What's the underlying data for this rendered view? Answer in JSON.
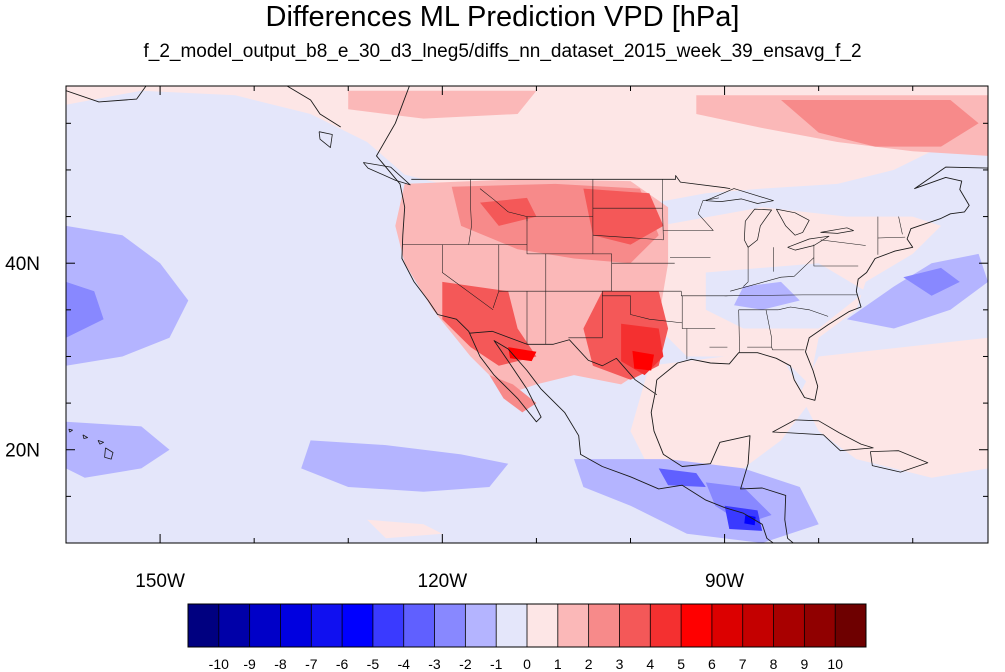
{
  "title": "Differences ML Prediction VPD [hPa]",
  "subtitle": "f_2_model_output_b8_e_30_d3_lneg5/diffs_nn_dataset_2015_week_39_ensavg_f_2",
  "map": {
    "lon_range": [
      -160,
      -62
    ],
    "lat_range": [
      10,
      59
    ],
    "x_ticks": [
      {
        "value": -150,
        "label": "150W"
      },
      {
        "value": -120,
        "label": "120W"
      },
      {
        "value": -90,
        "label": "90W"
      }
    ],
    "y_ticks": [
      {
        "value": 40,
        "label": "40N"
      },
      {
        "value": 20,
        "label": "20N"
      }
    ],
    "background_value": -0.5
  },
  "colorbar": {
    "labels": [
      "-10",
      "-9",
      "-8",
      "-7",
      "-6",
      "-5",
      "-4",
      "-3",
      "-2",
      "-1",
      "0",
      "1",
      "2",
      "3",
      "4",
      "5",
      "6",
      "7",
      "8",
      "9",
      "10"
    ],
    "colors": [
      "#000080",
      "#0000a8",
      "#0000c8",
      "#0000e0",
      "#1010f0",
      "#0000ff",
      "#3a3aff",
      "#6060ff",
      "#8888ff",
      "#b4b4ff",
      "#e4e6fa",
      "#fde6e6",
      "#fbb8b8",
      "#f78a8a",
      "#f45858",
      "#f43030",
      "#ff0000",
      "#dc0000",
      "#c40000",
      "#a80000",
      "#900000",
      "#6e0000"
    ]
  },
  "chart_data": {
    "type": "heatmap",
    "title": "Differences ML Prediction VPD [hPa]",
    "subtitle": "f_2_model_output_b8_e_30_d3_lneg5/diffs_nn_dataset_2015_week_39_ensavg_f_2",
    "xlim": [
      -160,
      -62
    ],
    "ylim": [
      10,
      59
    ],
    "x_tick_labels": [
      "150W",
      "120W",
      "90W"
    ],
    "y_tick_labels": [
      "40N",
      "20N"
    ],
    "colorbar_labels": [
      "-10",
      "-9",
      "-8",
      "-7",
      "-6",
      "-5",
      "-4",
      "-3",
      "-2",
      "-1",
      "0",
      "1",
      "2",
      "3",
      "4",
      "5",
      "6",
      "7",
      "8",
      "9",
      "10"
    ],
    "regions": [
      {
        "lon": -100,
        "lat": 55,
        "value": 1.5
      },
      {
        "lon": -75,
        "lat": 53,
        "value": 2.5
      },
      {
        "lon": -108,
        "lat": 44,
        "value": 3
      },
      {
        "lon": -101,
        "lat": 34,
        "value": 4
      },
      {
        "lon": -99,
        "lat": 30,
        "value": 6
      },
      {
        "lon": -112,
        "lat": 31,
        "value": 5
      },
      {
        "lon": -155,
        "lat": 36,
        "value": -2.5
      },
      {
        "lon": -120,
        "lat": 18,
        "value": -2
      },
      {
        "lon": -70,
        "lat": 36,
        "value": -3
      },
      {
        "lon": -88,
        "lat": 14,
        "value": -5
      },
      {
        "lon": -85,
        "lat": 36,
        "value": -1
      },
      {
        "lon": -138,
        "lat": 44,
        "value": -0.5
      },
      {
        "lon": -80,
        "lat": 22,
        "value": 0.5
      }
    ]
  }
}
